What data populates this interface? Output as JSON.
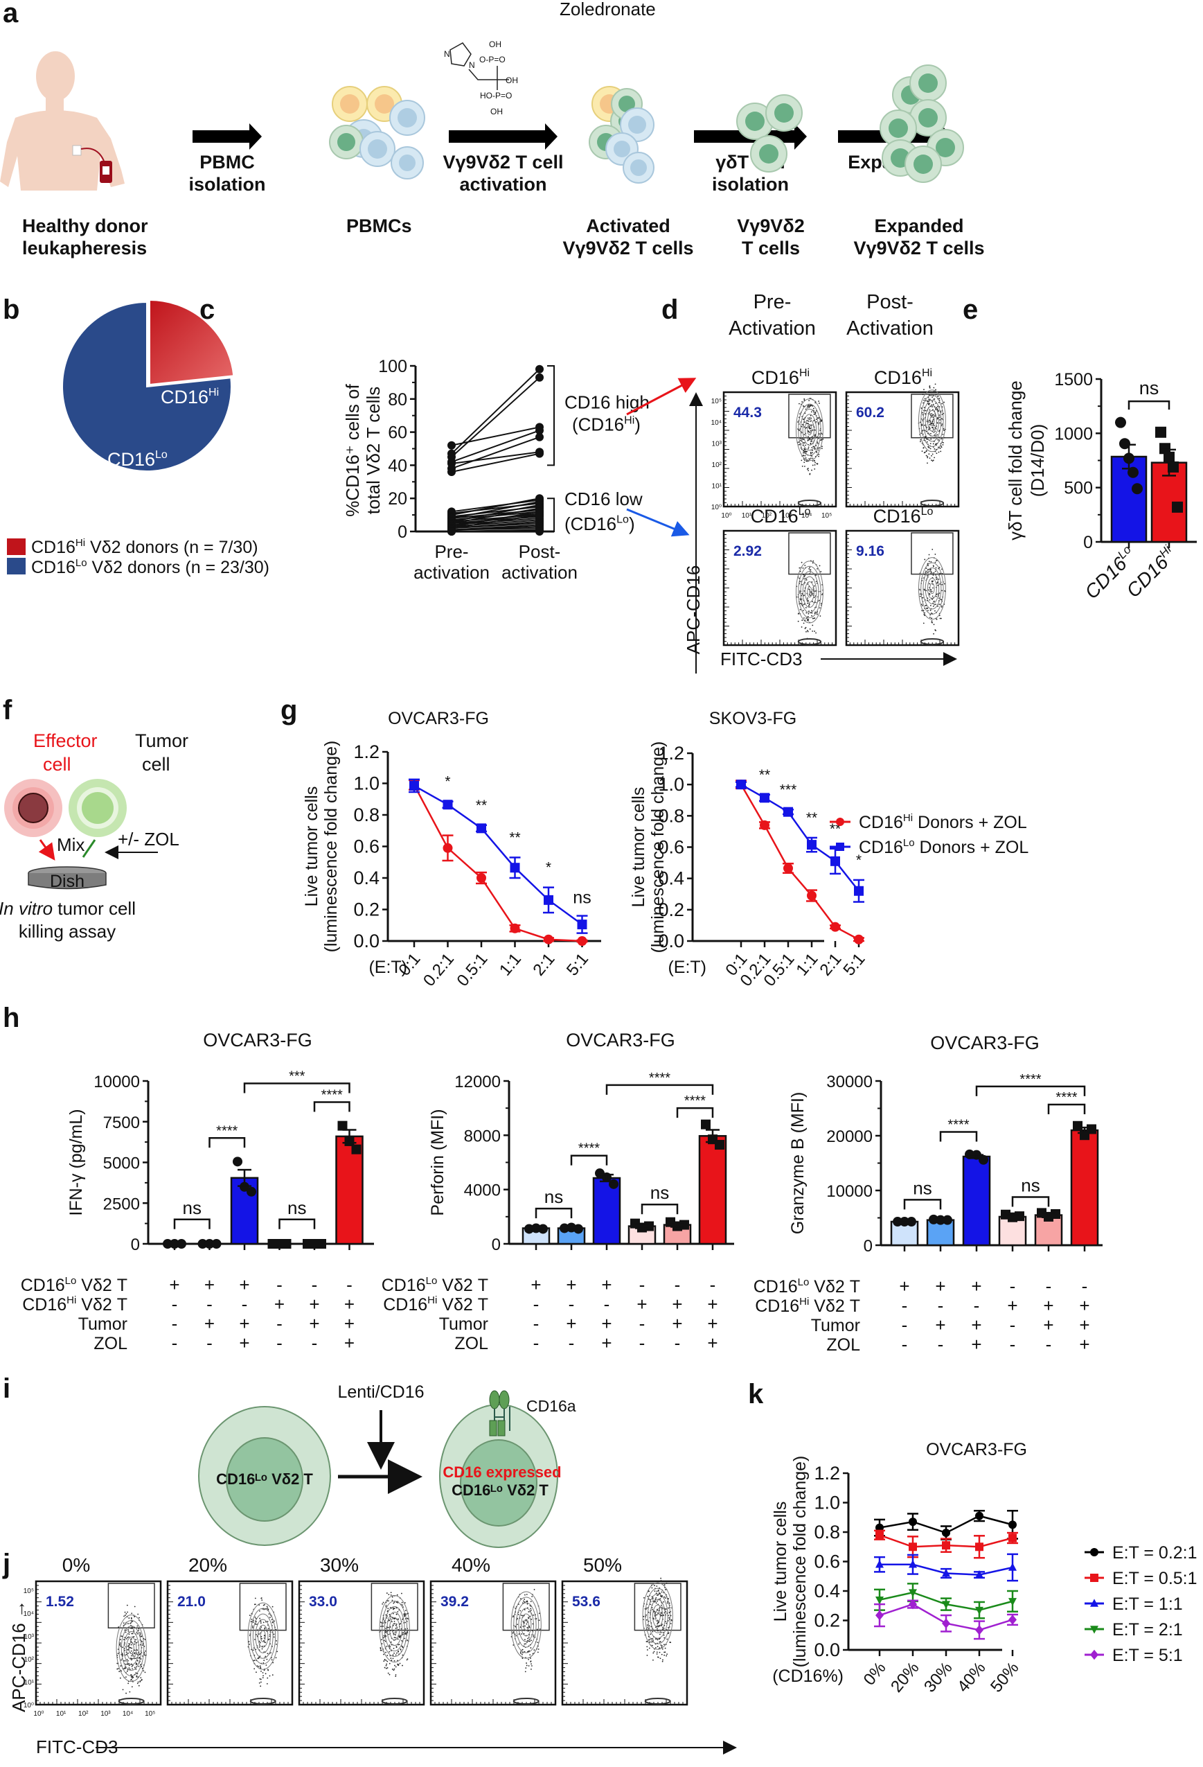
{
  "panel_letters": [
    "a",
    "b",
    "c",
    "d",
    "e",
    "f",
    "g",
    "h",
    "i",
    "j",
    "k"
  ],
  "panel_a": {
    "drug_label": "Zoledronate",
    "steps": [
      {
        "caption": "Healthy donor\nleukapheresis"
      },
      {
        "arrow": "PBMC\nisolation",
        "caption": "PBMCs"
      },
      {
        "arrow": "Vγ9Vδ2 T cell\nactivation",
        "caption": "Activated\nVγ9Vδ2 T cells"
      },
      {
        "arrow": "γδT cell\nisolation",
        "caption": "Vγ9Vδ2\nT cells"
      },
      {
        "arrow": "Expansion",
        "caption": "Expanded\nVγ9Vδ2 T cells"
      }
    ],
    "molecule_labels": [
      "N",
      "N",
      "H",
      "OH",
      "O–P=O",
      "OH",
      "HO–P=O",
      "OH"
    ]
  },
  "panel_f": {
    "effector": "Effector\ncell",
    "tumor": "Tumor\ncell",
    "mix": "Mix",
    "dish": "Dish",
    "zol": "+/- ZOL",
    "caption_italic": "In vitro",
    "caption_rest": " tumor cell",
    "caption_line2": "killing assay"
  },
  "panel_d": {
    "col_headers": [
      "Pre-\nActivation",
      "Post-\nActivation"
    ],
    "plots": [
      {
        "label": "CD16",
        "sup": "Hi",
        "gate_value": "44.3"
      },
      {
        "label": "CD16",
        "sup": "Hi",
        "gate_value": "60.2"
      },
      {
        "label": "CD16",
        "sup": "Lo",
        "gate_value": "2.92"
      },
      {
        "label": "CD16",
        "sup": "Lo",
        "gate_value": "9.16"
      }
    ],
    "y_axis": "APC-CD16",
    "x_axis": "FITC-CD3",
    "log_ticks": [
      "10⁰",
      "10¹",
      "10²",
      "10³",
      "10⁴",
      "10⁵"
    ]
  },
  "panel_i": {
    "vector": "Lenti/CD16",
    "receptor": "CD16a",
    "left_cell": "CD16ᴸᵒ Vδ2 T",
    "right_cell_red": "CD16 expressed",
    "right_cell": "CD16ᴸᵒ Vδ2 T"
  },
  "panel_j": {
    "headers": [
      "0%",
      "20%",
      "30%",
      "40%",
      "50%"
    ],
    "gate_values": [
      "1.52",
      "21.0",
      "33.0",
      "39.2",
      "53.6"
    ],
    "y_axis": "APC-CD16 →",
    "x_axis": "FITC-CD3",
    "log_ticks": [
      "10⁰",
      "10¹",
      "10²",
      "10³",
      "10⁴",
      "10⁵"
    ]
  },
  "colors": {
    "red": "#e8141a",
    "blue": "#1414e6",
    "pie_red": "#c0141b",
    "pie_blue": "#2a4a8a",
    "light_blue": "#cfe3fb",
    "mid_blue": "#5aa3f5",
    "light_red": "#fde0e0",
    "mid_red": "#f7a4a4",
    "green": "#1a8a1a",
    "purple": "#a020d0",
    "gate_blue": "#1a2aa8"
  },
  "chart_data": [
    {
      "id": "b",
      "type": "pie",
      "slices": [
        {
          "label": "CD16Hi",
          "value": 7,
          "legend": "CD16Hi Vδ2 donors (n = 7/30)"
        },
        {
          "label": "CD16Lo",
          "value": 23,
          "legend": "CD16Lo Vδ2 donors (n = 23/30)"
        }
      ],
      "legend_position": "bottom"
    },
    {
      "id": "c",
      "type": "line",
      "ylabel_line1": "%CD16⁺ cells of",
      "ylabel_line2": "total Vδ2 T cells",
      "categories": [
        "Pre-\nactivation",
        "Post-\nactivation"
      ],
      "ylim": [
        0,
        100
      ],
      "yticks": [
        0,
        20,
        40,
        60,
        80,
        100
      ],
      "high_pairs": [
        [
          52,
          63
        ],
        [
          47,
          98
        ],
        [
          45,
          93
        ],
        [
          42,
          61
        ],
        [
          41,
          48
        ],
        [
          38,
          57
        ],
        [
          36,
          47
        ]
      ],
      "low_pairs": [
        [
          12,
          19
        ],
        [
          11,
          17
        ],
        [
          10,
          20
        ],
        [
          9,
          15
        ],
        [
          8,
          18
        ],
        [
          8,
          13
        ],
        [
          7,
          12
        ],
        [
          6,
          16
        ],
        [
          6,
          10
        ],
        [
          5,
          14
        ],
        [
          5,
          9
        ],
        [
          4,
          11
        ],
        [
          4,
          8
        ],
        [
          3,
          7
        ],
        [
          3,
          12
        ],
        [
          2,
          6
        ],
        [
          2,
          5
        ],
        [
          2,
          10
        ],
        [
          1,
          4
        ],
        [
          1,
          3
        ],
        [
          1,
          2
        ],
        [
          0,
          1
        ],
        [
          0,
          0
        ]
      ],
      "brackets": [
        {
          "label": "CD16 high",
          "label2": "(CD16",
          "sup": "Hi",
          "end": ")",
          "range": [
            40,
            100
          ]
        },
        {
          "label": "CD16 low",
          "label2": "(CD16",
          "sup": "Lo",
          "end": ")",
          "range": [
            0,
            20
          ]
        }
      ]
    },
    {
      "id": "e",
      "type": "bar",
      "ylabel_line1": "γδT cell fold change",
      "ylabel_line2": "(D14/D0)",
      "categories": [
        "CD16Lo",
        "CD16Hi"
      ],
      "values": [
        785,
        730
      ],
      "sem": [
        110,
        120
      ],
      "points": [
        [
          1100,
          905,
          770,
          640,
          490
        ],
        [
          1010,
          860,
          780,
          690,
          320
        ]
      ],
      "ylim": [
        0,
        1500
      ],
      "yticks": [
        0,
        500,
        1000,
        1500
      ],
      "annotation": "ns"
    },
    {
      "id": "g1",
      "type": "line",
      "title": "OVCAR3-FG",
      "ylabel_line1": "Live tumor cells",
      "ylabel_line2": "(luminescence fold change)",
      "xlabel": "(E:T)",
      "categories": [
        "0:1",
        "0.2:1",
        "0.5:1",
        "1:1",
        "2:1",
        "5:1"
      ],
      "ylim": [
        0,
        1.2
      ],
      "yticks": [
        "0.0",
        "0.2",
        "0.4",
        "0.6",
        "0.8",
        "1.0",
        "1.2"
      ],
      "series": [
        {
          "name": "CD16Hi Donors + ZOL",
          "color": "red",
          "marker": "circle",
          "values": [
            0.99,
            0.59,
            0.4,
            0.08,
            0.01,
            0.0
          ],
          "err": [
            0.03,
            0.08,
            0.035,
            0.02,
            0.01,
            0.005
          ]
        },
        {
          "name": "CD16Lo Donors + ZOL",
          "color": "blue",
          "marker": "square",
          "values": [
            0.985,
            0.865,
            0.715,
            0.465,
            0.26,
            0.105
          ],
          "err": [
            0.04,
            0.02,
            0.02,
            0.065,
            0.08,
            0.055
          ]
        }
      ],
      "significance": [
        "",
        "*",
        "**",
        "**",
        "*",
        "ns"
      ]
    },
    {
      "id": "g2",
      "type": "line",
      "title": "SKOV3-FG",
      "ylabel_line1": "Live tumor cells",
      "ylabel_line2": "(luminescence fold change)",
      "xlabel": "(E:T)",
      "categories": [
        "0:1",
        "0.2:1",
        "0.5:1",
        "1:1",
        "2:1",
        "5:1"
      ],
      "ylim": [
        0,
        1.2
      ],
      "yticks": [
        "0.0",
        "0.2",
        "0.4",
        "0.6",
        "0.8",
        "1.0",
        "1.2"
      ],
      "series": [
        {
          "name": "CD16Hi Donors + ZOL",
          "color": "red",
          "marker": "circle",
          "values": [
            1.0,
            0.74,
            0.465,
            0.29,
            0.09,
            0.01
          ],
          "err": [
            0.025,
            0.02,
            0.03,
            0.035,
            0.01,
            0.01
          ]
        },
        {
          "name": "CD16Lo Donors + ZOL",
          "color": "blue",
          "marker": "square",
          "values": [
            1.0,
            0.915,
            0.825,
            0.615,
            0.51,
            0.32
          ],
          "err": [
            0.015,
            0.02,
            0.015,
            0.045,
            0.08,
            0.07
          ]
        }
      ],
      "significance": [
        "",
        "**",
        "***",
        "**",
        "**",
        "*"
      ],
      "legend": [
        {
          "base": "CD16",
          "sup": "Hi",
          "rest": " Donors + ZOL",
          "color": "red",
          "marker": "circle"
        },
        {
          "base": "CD16",
          "sup": "Lo",
          "rest": " Donors + ZOL",
          "color": "blue",
          "marker": "square"
        }
      ],
      "legend_position": "right"
    },
    {
      "id": "h1",
      "type": "bar",
      "title": "OVCAR3-FG",
      "ylabel": "IFN-γ (pg/mL)",
      "ylim": [
        0,
        10000
      ],
      "yticks": [
        "0",
        "2500",
        "5000",
        "7500",
        "10000"
      ],
      "values": [
        0,
        0,
        4050,
        0,
        0,
        6600
      ],
      "sem": [
        0,
        0,
        500,
        0,
        0,
        400
      ],
      "bar_colors": [
        "none",
        "none",
        "blue",
        "none",
        "none",
        "red"
      ],
      "marker": [
        "circle",
        "circle",
        "circle",
        "square",
        "square",
        "square"
      ],
      "points": [
        [
          0,
          0,
          0
        ],
        [
          0,
          0,
          0
        ],
        [
          5050,
          3500,
          3200
        ],
        [
          0,
          0,
          0
        ],
        [
          0,
          0,
          0
        ],
        [
          7250,
          6300,
          5800
        ]
      ],
      "brackets": [
        {
          "from": 0,
          "to": 1,
          "label": "ns",
          "level": 1500
        },
        {
          "from": 3,
          "to": 4,
          "label": "ns",
          "level": 1500
        },
        {
          "from": 1,
          "to": 2,
          "label": "****",
          "level": 6500
        },
        {
          "from": 4,
          "to": 5,
          "label": "****",
          "level": 8700
        },
        {
          "from": 2,
          "to": 5,
          "label": "***",
          "level": 9850
        }
      ]
    },
    {
      "id": "h2",
      "type": "bar",
      "title": "OVCAR3-FG",
      "ylabel": "Perforin (MFI)",
      "ylim": [
        0,
        12000
      ],
      "yticks": [
        "0",
        "4000",
        "8000",
        "12000"
      ],
      "values": [
        1150,
        1150,
        4850,
        1300,
        1400,
        7950
      ],
      "sem": [
        50,
        50,
        250,
        150,
        150,
        450
      ],
      "bar_colors": [
        "light_blue",
        "mid_blue",
        "blue",
        "light_red",
        "mid_red",
        "red"
      ],
      "marker": [
        "circle",
        "circle",
        "circle",
        "square",
        "square",
        "square"
      ],
      "points": [
        [
          1100,
          1150,
          1100
        ],
        [
          1150,
          1200,
          1100
        ],
        [
          5200,
          4900,
          4400
        ],
        [
          1500,
          1200,
          1300
        ],
        [
          1600,
          1300,
          1400
        ],
        [
          8800,
          7700,
          7300
        ]
      ],
      "brackets": [
        {
          "from": 0,
          "to": 1,
          "label": "ns",
          "level": 2600
        },
        {
          "from": 3,
          "to": 4,
          "label": "ns",
          "level": 2900
        },
        {
          "from": 1,
          "to": 2,
          "label": "****",
          "level": 6500
        },
        {
          "from": 4,
          "to": 5,
          "label": "****",
          "level": 10000
        },
        {
          "from": 2,
          "to": 5,
          "label": "****",
          "level": 11700
        }
      ]
    },
    {
      "id": "h3",
      "type": "bar",
      "title": "OVCAR3-FG",
      "ylabel": "Granzyme B (MFI)",
      "ylim": [
        0,
        30000
      ],
      "yticks": [
        "0",
        "10000",
        "20000",
        "30000"
      ],
      "values": [
        4300,
        4600,
        16200,
        5200,
        5500,
        21000
      ],
      "sem": [
        100,
        150,
        300,
        300,
        400,
        500
      ],
      "bar_colors": [
        "light_blue",
        "mid_blue",
        "blue",
        "light_red",
        "mid_red",
        "red"
      ],
      "marker": [
        "circle",
        "circle",
        "circle",
        "square",
        "square",
        "square"
      ],
      "points": [
        [
          4300,
          4300,
          4300
        ],
        [
          4700,
          4600,
          4600
        ],
        [
          16600,
          16500,
          15600
        ],
        [
          5600,
          5100,
          5300
        ],
        [
          5900,
          5200,
          5700
        ],
        [
          21800,
          20100,
          21200
        ]
      ],
      "brackets": [
        {
          "from": 0,
          "to": 1,
          "label": "ns",
          "level": 8300
        },
        {
          "from": 3,
          "to": 4,
          "label": "ns",
          "level": 8800
        },
        {
          "from": 1,
          "to": 2,
          "label": "****",
          "level": 20700
        },
        {
          "from": 4,
          "to": 5,
          "label": "****",
          "level": 25700
        },
        {
          "from": 2,
          "to": 5,
          "label": "****",
          "level": 29000
        }
      ]
    },
    {
      "id": "k",
      "type": "line",
      "title": "OVCAR3-FG",
      "ylabel_line1": "Live tumor cells",
      "ylabel_line2": "(luminescence fold change)",
      "xlabel": "(CD16%)",
      "categories": [
        "0%",
        "20%",
        "30%",
        "40%",
        "50%"
      ],
      "ylim": [
        0,
        1.2
      ],
      "yticks": [
        "0.0",
        "0.2",
        "0.4",
        "0.6",
        "0.8",
        "1.0",
        "1.2"
      ],
      "series": [
        {
          "name": "E:T = 0.2:1",
          "color": "#000000",
          "marker": "circle",
          "values": [
            0.83,
            0.87,
            0.795,
            0.91,
            0.85
          ],
          "err": [
            0.055,
            0.055,
            0.045,
            0.035,
            0.095
          ]
        },
        {
          "name": "E:T = 0.5:1",
          "color": "#e8141a",
          "marker": "square",
          "values": [
            0.78,
            0.7,
            0.71,
            0.7,
            0.76
          ],
          "err": [
            0.03,
            0.07,
            0.045,
            0.075,
            0.035
          ]
        },
        {
          "name": "E:T = 1:1",
          "color": "#1414e6",
          "marker": "triangle-up",
          "values": [
            0.58,
            0.58,
            0.52,
            0.51,
            0.56
          ],
          "err": [
            0.05,
            0.065,
            0.03,
            0.02,
            0.09
          ]
        },
        {
          "name": "E:T = 2:1",
          "color": "#1a8a1a",
          "marker": "triangle-down",
          "values": [
            0.34,
            0.39,
            0.31,
            0.27,
            0.33
          ],
          "err": [
            0.07,
            0.06,
            0.04,
            0.055,
            0.07
          ]
        },
        {
          "name": "E:T = 5:1",
          "color": "#a020d0",
          "marker": "diamond",
          "values": [
            0.235,
            0.31,
            0.18,
            0.135,
            0.205
          ],
          "err": [
            0.075,
            0.025,
            0.055,
            0.06,
            0.035
          ]
        }
      ],
      "legend_position": "right"
    }
  ],
  "panel_h_table": {
    "row_labels": [
      {
        "base": "CD16",
        "sup": "Lo",
        "rest": " Vδ2 T"
      },
      {
        "base": "CD16",
        "sup": "Hi",
        "rest": " Vδ2 T"
      },
      {
        "base": "Tumor",
        "sup": "",
        "rest": ""
      },
      {
        "base": "ZOL",
        "sup": "",
        "rest": ""
      }
    ],
    "rows": [
      [
        "+",
        "+",
        "+",
        "-",
        "-",
        "-"
      ],
      [
        "-",
        "-",
        "-",
        "+",
        "+",
        "+"
      ],
      [
        "-",
        "+",
        "+",
        "-",
        "+",
        "+"
      ],
      [
        "-",
        "-",
        "+",
        "-",
        "-",
        "+"
      ]
    ]
  }
}
